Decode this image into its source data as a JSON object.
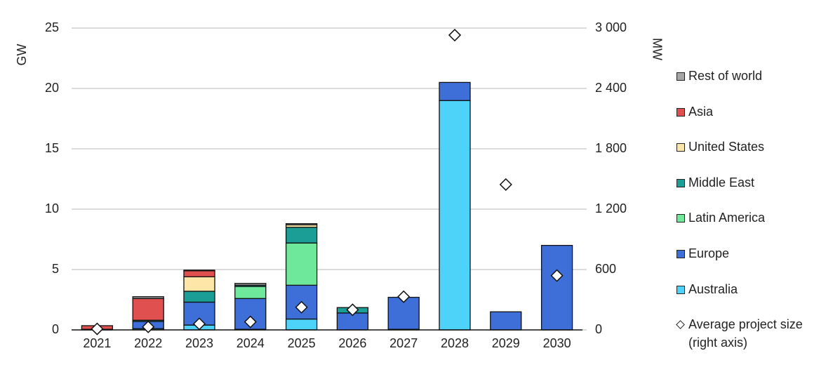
{
  "chart_data": {
    "type": "bar",
    "stacked": true,
    "y_label": "GW",
    "y2_label": "MW",
    "categories": [
      "2021",
      "2022",
      "2023",
      "2024",
      "2025",
      "2026",
      "2027",
      "2028",
      "2029",
      "2030"
    ],
    "ylim": [
      0,
      25
    ],
    "yticks": [
      0,
      5,
      10,
      15,
      20,
      25
    ],
    "y2lim": [
      0,
      3000
    ],
    "y2ticks": [
      0,
      600,
      {
        "value": 1200,
        "label": "1 200"
      },
      {
        "value": 1800,
        "label": "1 800"
      },
      {
        "value": 2400,
        "label": "2 400"
      },
      {
        "value": 3000,
        "label": "3 000"
      }
    ],
    "grid": true,
    "series": [
      {
        "name": "Australia",
        "color": "#4dd2f9",
        "values": [
          0,
          0.1,
          0.4,
          0.05,
          0.9,
          0,
          0.05,
          19.0,
          0,
          0
        ]
      },
      {
        "name": "Europe",
        "color": "#3e6fd8",
        "values": [
          0.05,
          0.6,
          1.9,
          2.55,
          2.8,
          1.4,
          2.65,
          1.5,
          1.5,
          7.0
        ]
      },
      {
        "name": "Latin America",
        "color": "#6ee89a",
        "values": [
          0,
          0,
          0,
          1.0,
          3.5,
          0,
          0,
          0,
          0,
          0
        ]
      },
      {
        "name": "Middle East",
        "color": "#1b9e96",
        "values": [
          0,
          0.1,
          0.9,
          0.1,
          1.3,
          0.45,
          0,
          0,
          0,
          0
        ]
      },
      {
        "name": "United States",
        "color": "#fde6a8",
        "values": [
          0,
          0,
          1.2,
          0,
          0.2,
          0,
          0,
          0,
          0,
          0
        ]
      },
      {
        "name": "Asia",
        "color": "#e0504f",
        "values": [
          0.3,
          1.8,
          0.5,
          0,
          0,
          0,
          0,
          0,
          0,
          0
        ]
      },
      {
        "name": "Rest of world",
        "color": "#a6a6a6",
        "values": [
          0,
          0.15,
          0.05,
          0.15,
          0.1,
          0,
          0,
          0,
          0,
          0
        ]
      },
      {
        "name": "Average project size (right axis)",
        "type": "scatter",
        "axis": "y2",
        "color": "#ffffff",
        "values": [
          10,
          30,
          60,
          80,
          225,
          200,
          330,
          2930,
          1445,
          540
        ]
      }
    ]
  }
}
